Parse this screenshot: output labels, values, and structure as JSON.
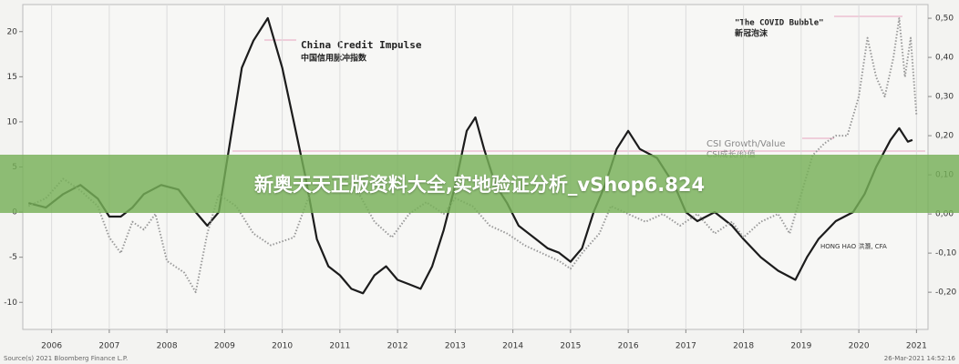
{
  "chart_data": {
    "type": "line",
    "annotations": {
      "credit_en": "China Credit Impulse",
      "credit_cn": "中国信用脉冲指数",
      "covid_en": "\"The COVID Bubble\"",
      "covid_cn": "新冠泡沫",
      "csi_en": "CSI Growth/Value",
      "csi_cn": "CSI成长/价值",
      "author": "HONG HAO 洪灏, CFA",
      "source": "Source(s) 2021 Bloomberg Finance L.P.",
      "timestamp": "26-Mar-2021 14:52:16"
    },
    "xlim": [
      2005.5,
      2021.2
    ],
    "xticks": [
      2006,
      2007,
      2008,
      2009,
      2010,
      2011,
      2012,
      2013,
      2014,
      2015,
      2016,
      2017,
      2018,
      2019,
      2020,
      2021
    ],
    "ylim": [
      -13,
      23
    ],
    "yticks": [
      20,
      15,
      10,
      5,
      0,
      -5,
      -10
    ],
    "y2lim": [
      -0.295,
      0.535
    ],
    "y2ticks": [
      {
        "value": 0.5,
        "label": "0,50"
      },
      {
        "value": 0.4,
        "label": "0,40"
      },
      {
        "value": 0.3,
        "label": "0,30"
      },
      {
        "value": 0.2,
        "label": "0,20"
      },
      {
        "value": 0.1,
        "label": "0,10"
      },
      {
        "value": 0,
        "label": "0,00"
      },
      {
        "value": -0.1,
        "label": "-0,10"
      },
      {
        "value": -0.2,
        "label": "-0,20"
      }
    ],
    "grid": "x",
    "series": [
      {
        "name": "China Credit Impulse",
        "color": "#1c1c1c",
        "style": "solid",
        "x": [
          2005.6,
          2005.9,
          2006.2,
          2006.5,
          2006.8,
          2007.0,
          2007.2,
          2007.4,
          2007.6,
          2007.9,
          2008.2,
          2008.5,
          2008.7,
          2008.9,
          2009.0,
          2009.1,
          2009.3,
          2009.5,
          2009.75,
          2010.0,
          2010.2,
          2010.4,
          2010.6,
          2010.8,
          2011.0,
          2011.2,
          2011.4,
          2011.6,
          2011.8,
          2012.0,
          2012.2,
          2012.4,
          2012.6,
          2012.8,
          2013.0,
          2013.2,
          2013.35,
          2013.5,
          2013.7,
          2013.9,
          2014.1,
          2014.4,
          2014.6,
          2014.8,
          2015.0,
          2015.2,
          2015.4,
          2015.6,
          2015.8,
          2016.0,
          2016.2,
          2016.5,
          2016.8,
          2017.0,
          2017.2,
          2017.5,
          2017.8,
          2018.0,
          2018.3,
          2018.6,
          2018.9,
          2019.1,
          2019.3,
          2019.6,
          2019.9,
          2020.1,
          2020.3,
          2020.55,
          2020.7,
          2020.85,
          2020.93
        ],
        "values": [
          1,
          0.5,
          2,
          3,
          1.5,
          -0.5,
          -0.5,
          0.5,
          2,
          3,
          2.5,
          0,
          -1.5,
          0,
          4,
          8,
          16,
          19,
          21.5,
          16,
          10,
          4,
          -3,
          -6,
          -7,
          -8.5,
          -9,
          -7,
          -6,
          -7.5,
          -8,
          -8.5,
          -6,
          -2,
          3,
          9,
          10.5,
          7,
          3,
          1,
          -1.5,
          -3,
          -4,
          -4.5,
          -5.5,
          -4,
          0,
          3,
          7,
          9,
          7,
          6,
          3,
          0,
          -1,
          0,
          -1.5,
          -3,
          -5,
          -6.5,
          -7.5,
          -5,
          -3,
          -1,
          0,
          2,
          5,
          8,
          9.3,
          7.8,
          8
        ]
      },
      {
        "name": "CSI Growth/Value",
        "color": "#9a9a9a",
        "style": "dotted",
        "axis": "y2",
        "x": [
          2005.6,
          2005.9,
          2006.2,
          2006.5,
          2006.8,
          2007.0,
          2007.2,
          2007.4,
          2007.6,
          2007.8,
          2008.0,
          2008.3,
          2008.5,
          2008.7,
          2008.9,
          2009.2,
          2009.5,
          2009.8,
          2010.2,
          2010.5,
          2010.8,
          2011.0,
          2011.3,
          2011.6,
          2011.9,
          2012.2,
          2012.5,
          2012.8,
          2013.0,
          2013.3,
          2013.6,
          2013.9,
          2014.2,
          2014.5,
          2014.8,
          2015.0,
          2015.2,
          2015.5,
          2015.7,
          2016.0,
          2016.3,
          2016.6,
          2016.9,
          2017.2,
          2017.5,
          2017.8,
          2018.0,
          2018.3,
          2018.6,
          2018.8,
          2019.0,
          2019.2,
          2019.4,
          2019.6,
          2019.8,
          2020.0,
          2020.15,
          2020.3,
          2020.45,
          2020.6,
          2020.7,
          2020.8,
          2020.9,
          2021.0
        ],
        "values": [
          0.02,
          0.04,
          0.09,
          0.06,
          0.02,
          -0.06,
          -0.1,
          -0.02,
          -0.04,
          0,
          -0.12,
          -0.15,
          -0.2,
          -0.05,
          0.05,
          0.02,
          -0.05,
          -0.08,
          -0.06,
          0.06,
          0.08,
          0.1,
          0.06,
          -0.02,
          -0.06,
          0,
          0.03,
          0,
          0.04,
          0.02,
          -0.03,
          -0.05,
          -0.08,
          -0.1,
          -0.12,
          -0.14,
          -0.1,
          -0.05,
          0.02,
          0,
          -0.02,
          0,
          -0.03,
          0,
          -0.05,
          -0.02,
          -0.06,
          -0.02,
          0,
          -0.05,
          0.05,
          0.15,
          0.18,
          0.2,
          0.2,
          0.3,
          0.45,
          0.35,
          0.3,
          0.4,
          0.5,
          0.35,
          0.45,
          0.25
        ]
      }
    ]
  },
  "overlay_banner": {
    "text": "新奥天天正版资料大全,实地验证分析_vShop6.824"
  }
}
